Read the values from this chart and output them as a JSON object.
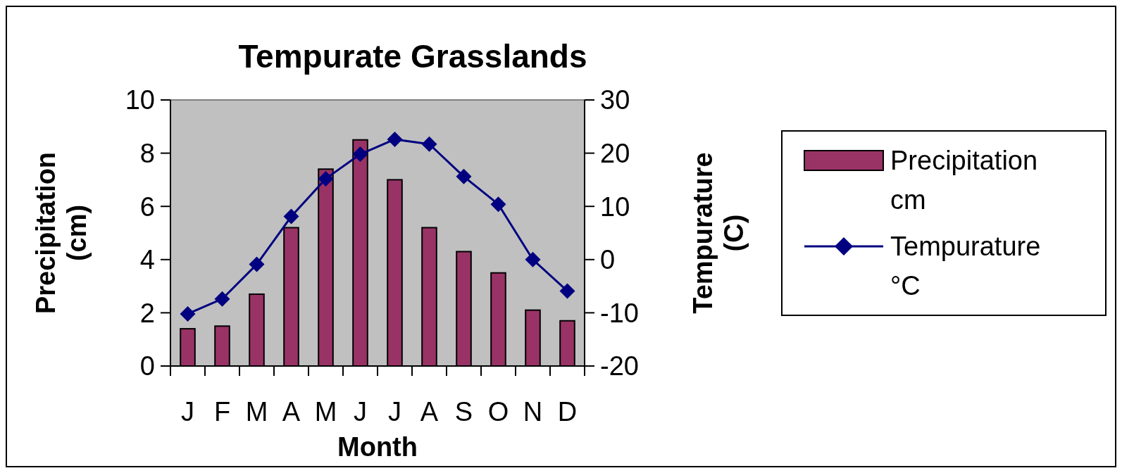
{
  "chart_data": {
    "type": "bar",
    "title": "Tempurate Grasslands",
    "xlabel": "Month",
    "ylabel": "Precipitation (cm)",
    "y2label": "Tempurature (C)",
    "categories": [
      "J",
      "F",
      "M",
      "A",
      "M",
      "J",
      "J",
      "A",
      "S",
      "O",
      "N",
      "D"
    ],
    "series": [
      {
        "name": "Precipitation cm",
        "color": "#993366",
        "values": [
          1.4,
          1.5,
          2.7,
          5.2,
          7.4,
          8.5,
          7.0,
          5.2,
          4.3,
          3.5,
          2.1,
          1.7
        ]
      },
      {
        "name": "Tempurature °C",
        "type": "line",
        "axis": "y2",
        "color": "#000080",
        "marker": "diamond",
        "values": [
          -10.2,
          -7.4,
          -0.9,
          8.1,
          15.2,
          19.8,
          22.6,
          21.7,
          15.6,
          10.4,
          0.0,
          -5.9
        ]
      }
    ],
    "ylim": [
      0,
      10
    ],
    "yticks": [
      0,
      2,
      4,
      6,
      8,
      10
    ],
    "y2lim": [
      -20,
      30
    ],
    "y2ticks": [
      -20,
      -10,
      0,
      10,
      20,
      30
    ],
    "legend": "right",
    "grid": false
  }
}
